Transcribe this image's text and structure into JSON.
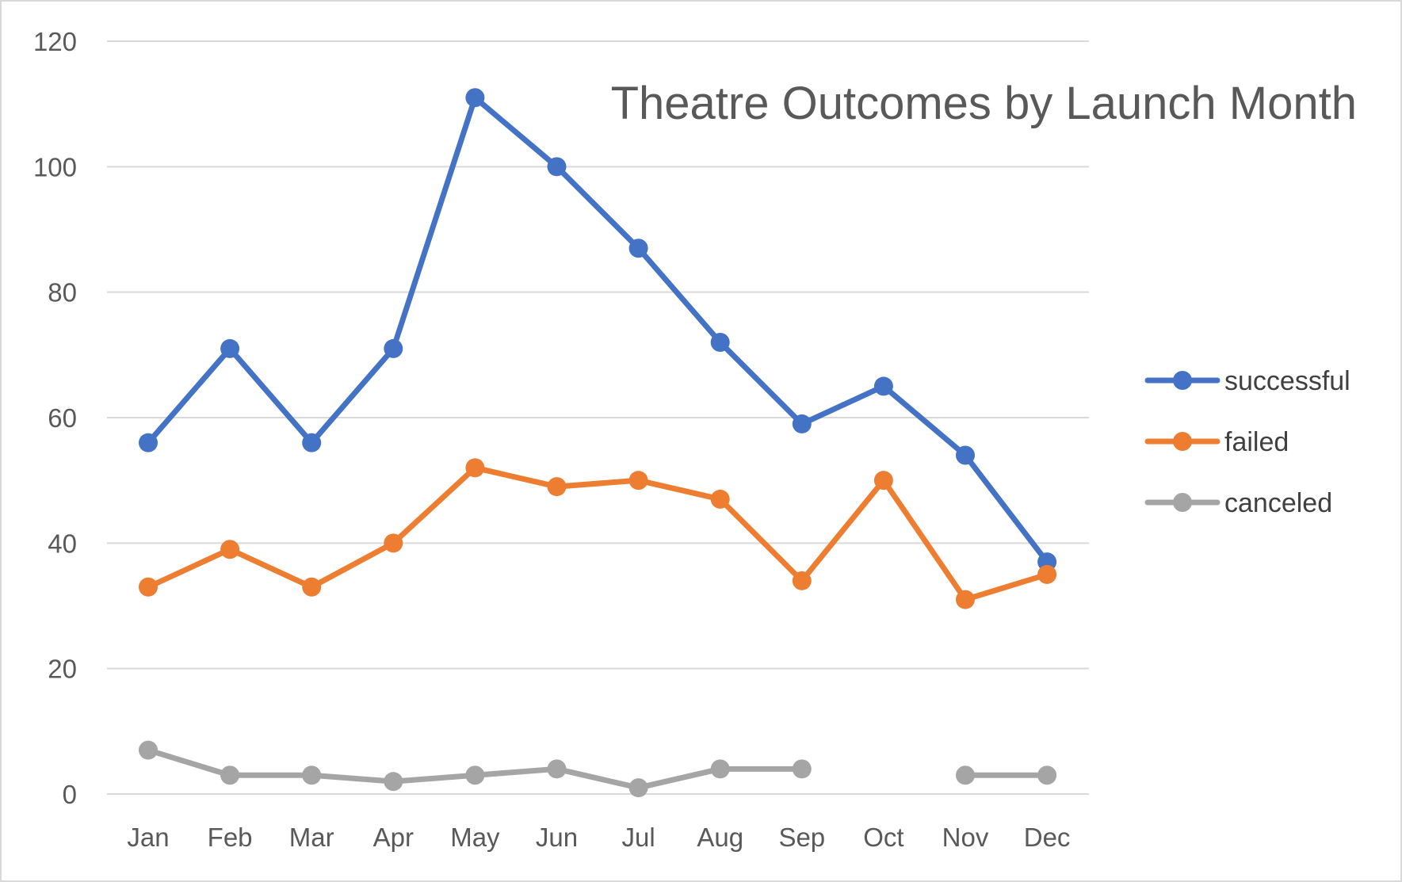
{
  "chart_data": {
    "type": "line",
    "title": "Theatre Outcomes by Launch Month",
    "xlabel": "",
    "ylabel": "",
    "categories": [
      "Jan",
      "Feb",
      "Mar",
      "Apr",
      "May",
      "Jun",
      "Jul",
      "Aug",
      "Sep",
      "Oct",
      "Nov",
      "Dec"
    ],
    "ylim": [
      0,
      120
    ],
    "yticks": [
      0,
      20,
      40,
      60,
      80,
      100,
      120
    ],
    "grid": true,
    "legend_position": "right",
    "series": [
      {
        "name": "successful",
        "color": "#4472c4",
        "values": [
          56,
          71,
          56,
          71,
          111,
          100,
          87,
          72,
          59,
          65,
          54,
          37
        ]
      },
      {
        "name": "failed",
        "color": "#ed7d31",
        "values": [
          33,
          39,
          33,
          40,
          52,
          49,
          50,
          47,
          34,
          50,
          31,
          35
        ]
      },
      {
        "name": "canceled",
        "color": "#a5a5a5",
        "values": [
          7,
          3,
          3,
          2,
          3,
          4,
          1,
          4,
          4,
          null,
          3,
          3
        ]
      }
    ]
  }
}
